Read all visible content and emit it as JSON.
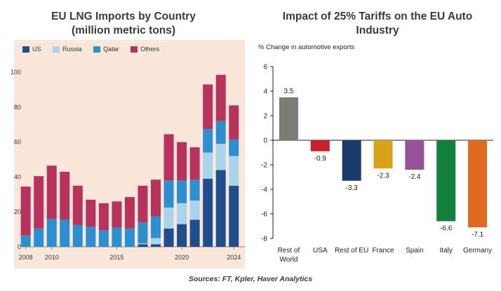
{
  "source": "Sources: FT, Kpler, Haver Analytics",
  "chart_data": [
    {
      "type": "bar",
      "stacked": true,
      "title": "EU LNG Imports by Country\n(million metric tons)",
      "title_lines": [
        "EU LNG Imports by Country",
        "(million metric tons)"
      ],
      "ylim": [
        0,
        100
      ],
      "yticks": [
        0,
        20,
        40,
        60,
        80,
        100
      ],
      "xtick_labels": [
        "2008",
        "2010",
        "2015",
        "2020",
        "2024"
      ],
      "xtick_positions": [
        2008,
        2010,
        2015,
        2020,
        2024
      ],
      "x": [
        2008,
        2008.5,
        2009,
        2009.5,
        2010,
        2010.5,
        2011,
        2011.5,
        2012,
        2012.5,
        2013,
        2013.5,
        2014,
        2014.5,
        2015,
        2015.5,
        2016,
        2016.5,
        2017,
        2017.5,
        2018,
        2018.5,
        2019,
        2019.5,
        2020,
        2020.5,
        2021,
        2021.5,
        2022,
        2022.5,
        2023,
        2023.5,
        2024,
        2024.5
      ],
      "legend": [
        "US",
        "Russia",
        "Qatar",
        "Others"
      ],
      "colors": {
        "US": "#1f4e8c",
        "Russia": "#a8d4ee",
        "Qatar": "#2b8fd0",
        "Others": "#b8325e"
      },
      "bars": [
        {
          "x": 2008,
          "US": 0,
          "Russia": 0,
          "Qatar": 6.5,
          "Others": 28
        },
        {
          "x": 2009,
          "US": 0,
          "Russia": 0,
          "Qatar": 10.5,
          "Others": 30
        },
        {
          "x": 2010,
          "US": 0,
          "Russia": 0,
          "Qatar": 16,
          "Others": 30.5
        },
        {
          "x": 2011,
          "US": 0,
          "Russia": 0,
          "Qatar": 15.5,
          "Others": 27.5
        },
        {
          "x": 2012,
          "US": 0,
          "Russia": 0,
          "Qatar": 12.5,
          "Others": 22.5
        },
        {
          "x": 2013,
          "US": 0,
          "Russia": 0,
          "Qatar": 11.5,
          "Others": 15.5
        },
        {
          "x": 2014,
          "US": 0,
          "Russia": 0,
          "Qatar": 9.5,
          "Others": 15.5
        },
        {
          "x": 2015,
          "US": 0,
          "Russia": 0,
          "Qatar": 11,
          "Others": 15
        },
        {
          "x": 2016,
          "US": 0,
          "Russia": 0,
          "Qatar": 10.5,
          "Others": 18
        },
        {
          "x": 2017,
          "US": 1.5,
          "Russia": 0.5,
          "Qatar": 12,
          "Others": 21
        },
        {
          "x": 2018,
          "US": 1.5,
          "Russia": 3.5,
          "Qatar": 12.5,
          "Others": 21
        },
        {
          "x": 2019,
          "US": 10.5,
          "Russia": 12,
          "Qatar": 15.5,
          "Others": 26.5
        },
        {
          "x": 2020,
          "US": 13,
          "Russia": 12,
          "Qatar": 13,
          "Others": 22
        },
        {
          "x": 2021,
          "US": 15.5,
          "Russia": 11,
          "Qatar": 12,
          "Others": 18.5
        },
        {
          "x": 2022,
          "US": 39,
          "Russia": 15,
          "Qatar": 13.5,
          "Others": 25.5
        },
        {
          "x": 2023,
          "US": 44,
          "Russia": 15,
          "Qatar": 13,
          "Others": 26.5
        },
        {
          "x": 2024,
          "US": 35,
          "Russia": 17,
          "Qatar": 9.5,
          "Others": 19.5
        }
      ]
    },
    {
      "type": "bar",
      "title": "Impact of 25% Tariffs on the EU Auto Industry",
      "title_lines": [
        "Impact of 25% Tariffs on the EU Auto",
        "Industry"
      ],
      "ylabel": "% Change in automotive exports",
      "ylim": [
        -8,
        6
      ],
      "yticks": [
        -8,
        -6,
        -4,
        -2,
        0,
        2,
        4,
        6
      ],
      "categories": [
        "Rest of World",
        "USA",
        "Rest of EU",
        "France",
        "Spain",
        "Italy",
        "Germany"
      ],
      "category_lines": [
        [
          "Rest of",
          "World"
        ],
        [
          "USA"
        ],
        [
          "Rest of EU"
        ],
        [
          "France"
        ],
        [
          "Spain"
        ],
        [
          "Italy"
        ],
        [
          "Germany"
        ]
      ],
      "values": [
        3.5,
        -0.9,
        -3.3,
        -2.3,
        -2.4,
        -6.6,
        -7.1
      ],
      "value_labels": [
        "3.5",
        "-0.9",
        "-3.3",
        "-2.3",
        "-2.4",
        "-6.6",
        "-7.1"
      ],
      "colors": [
        "#7b7b78",
        "#c8202f",
        "#1a3a6b",
        "#d9a21b",
        "#98529a",
        "#13813d",
        "#e06a22"
      ]
    }
  ]
}
